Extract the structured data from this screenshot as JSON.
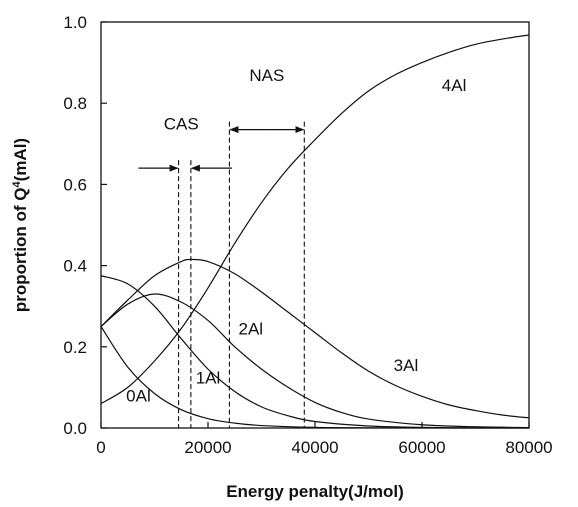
{
  "chart_data": {
    "type": "line",
    "xlabel": "Energy penalty(J/mol)",
    "ylabel": "proportion of Q",
    "ylabel_sup": "4",
    "ylabel_tail": "(mAl)",
    "xlim": [
      0,
      80000
    ],
    "ylim": [
      0,
      1.0
    ],
    "xticks": [
      0,
      20000,
      40000,
      60000,
      80000
    ],
    "yticks": [
      "0.0",
      "0.2",
      "0.4",
      "0.6",
      "0.8",
      "1.0"
    ],
    "grid": false,
    "series": [
      {
        "name": "0Al",
        "x": [
          0,
          5000,
          10000,
          15000,
          20000,
          25000,
          30000,
          40000,
          50000,
          60000,
          80000
        ],
        "y": [
          0.25,
          0.15,
          0.085,
          0.045,
          0.023,
          0.012,
          0.006,
          0.0015,
          0.0004,
          0.0001,
          0.0
        ]
      },
      {
        "name": "1Al",
        "x": [
          0,
          5000,
          10000,
          15000,
          20000,
          25000,
          30000,
          35000,
          40000,
          50000,
          60000,
          70000,
          80000
        ],
        "y": [
          0.375,
          0.355,
          0.3,
          0.22,
          0.145,
          0.09,
          0.052,
          0.03,
          0.016,
          0.005,
          0.0015,
          0.0004,
          0.0001
        ]
      },
      {
        "name": "2Al",
        "x": [
          0,
          5000,
          10000,
          15000,
          20000,
          25000,
          30000,
          35000,
          40000,
          45000,
          50000,
          60000,
          70000,
          80000
        ],
        "y": [
          0.25,
          0.305,
          0.33,
          0.31,
          0.265,
          0.2,
          0.145,
          0.1,
          0.063,
          0.038,
          0.022,
          0.008,
          0.003,
          0.001
        ]
      },
      {
        "name": "3Al",
        "x": [
          0,
          5000,
          10000,
          15000,
          17000,
          20000,
          25000,
          30000,
          35000,
          40000,
          45000,
          50000,
          55000,
          60000,
          65000,
          70000,
          75000,
          80000
        ],
        "y": [
          0.25,
          0.315,
          0.375,
          0.41,
          0.415,
          0.41,
          0.38,
          0.335,
          0.285,
          0.235,
          0.185,
          0.14,
          0.105,
          0.078,
          0.057,
          0.043,
          0.032,
          0.025
        ]
      },
      {
        "name": "4Al",
        "x": [
          0,
          5000,
          10000,
          15000,
          20000,
          25000,
          30000,
          35000,
          40000,
          45000,
          50000,
          55000,
          60000,
          65000,
          70000,
          75000,
          80000
        ],
        "y": [
          0.06,
          0.1,
          0.165,
          0.245,
          0.345,
          0.455,
          0.555,
          0.64,
          0.71,
          0.775,
          0.83,
          0.87,
          0.9,
          0.925,
          0.945,
          0.958,
          0.968
        ]
      }
    ],
    "series_labels": [
      {
        "name": "0Al",
        "x": 7000,
        "y": 0.065
      },
      {
        "name": "1Al",
        "x": 20000,
        "y": 0.11
      },
      {
        "name": "2Al",
        "x": 28000,
        "y": 0.23
      },
      {
        "name": "3Al",
        "x": 57000,
        "y": 0.14
      },
      {
        "name": "4Al",
        "x": 66000,
        "y": 0.83
      }
    ],
    "annotations": [
      {
        "label": "CAS",
        "label_x": 15000,
        "label_y": 0.735,
        "bounds": [
          14500,
          16800
        ],
        "arrow_y": 0.64,
        "arrow_style": "inward",
        "arrow_extent": [
          7000,
          24500
        ]
      },
      {
        "label": "NAS",
        "label_x": 31000,
        "label_y": 0.855,
        "bounds": [
          24000,
          38000
        ],
        "arrow_y": 0.735,
        "arrow_style": "outward"
      }
    ]
  }
}
